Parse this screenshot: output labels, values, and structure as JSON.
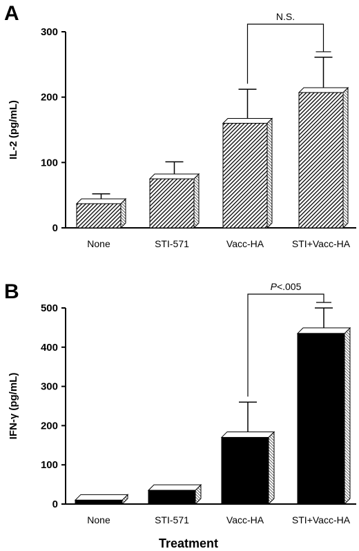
{
  "chart_data": [
    {
      "panel": "A",
      "type": "bar",
      "ylabel": "IL-2 (pg/mL)",
      "xlabel": "",
      "categories": [
        "None",
        "STI-571",
        "Vacc-HA",
        "STI+Vacc-HA"
      ],
      "values": [
        37,
        75,
        160,
        207
      ],
      "errors": [
        15,
        26,
        52,
        54
      ],
      "ylim": [
        0,
        300
      ],
      "yticks": [
        "0",
        "100",
        "200",
        "300"
      ],
      "fill": "hatched",
      "significance": {
        "from": 2,
        "to": 3,
        "label": "N.S."
      }
    },
    {
      "panel": "B",
      "type": "bar",
      "ylabel": "IFN-γ (pg/mL)",
      "xlabel": "Treatment",
      "categories": [
        "None",
        "STI-571",
        "Vacc-HA",
        "STI+Vacc-HA"
      ],
      "values": [
        10,
        35,
        170,
        435
      ],
      "errors": [
        5,
        12,
        90,
        65
      ],
      "ylim": [
        0,
        500
      ],
      "yticks": [
        "0",
        "100",
        "200",
        "300",
        "400",
        "500"
      ],
      "fill": "solid",
      "significance": {
        "from": 2,
        "to": 3,
        "label": "P<.005"
      }
    }
  ]
}
